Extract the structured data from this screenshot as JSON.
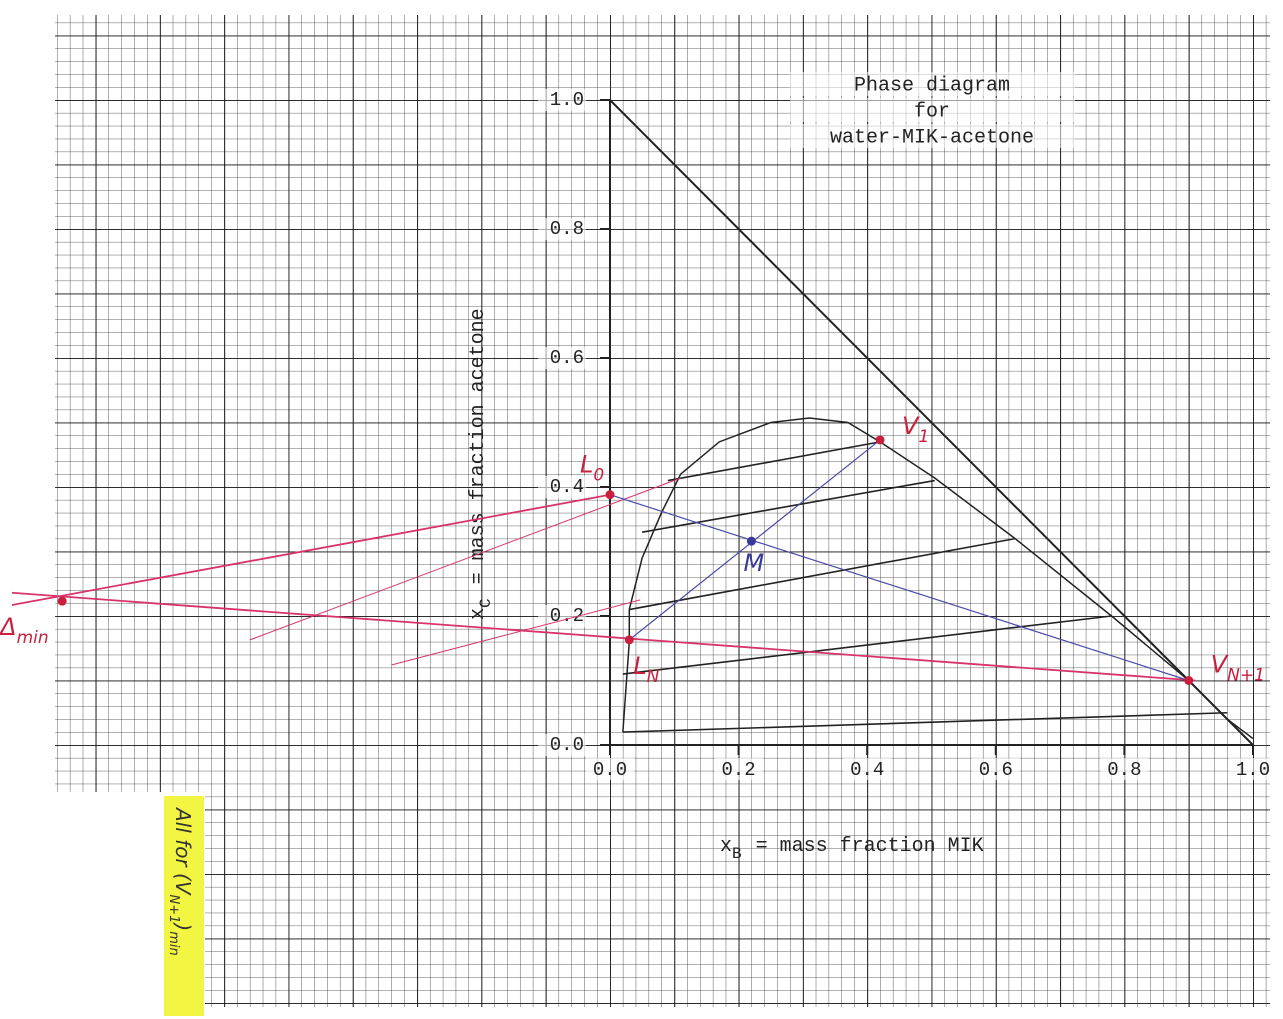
{
  "chart_data": {
    "type": "line",
    "title": [
      "Phase diagram",
      "for",
      "water-MIK-acetone"
    ],
    "xlabel": {
      "symbol": "x",
      "subscript": "B",
      "text": "= mass fraction MIK"
    },
    "ylabel": {
      "symbol": "x",
      "subscript": "C",
      "text": "= mass fraction acetone"
    },
    "xlim": [
      0,
      1
    ],
    "ylim": [
      0,
      1
    ],
    "xticks": [
      {
        "value": 0,
        "label": "0.0"
      },
      {
        "value": 0.2,
        "label": "0.2"
      },
      {
        "value": 0.4,
        "label": "0.4"
      },
      {
        "value": 0.6,
        "label": "0.6"
      },
      {
        "value": 0.8,
        "label": "0.8"
      },
      {
        "value": 1,
        "label": "1.0"
      }
    ],
    "yticks": [
      {
        "value": 0,
        "label": "0.0"
      },
      {
        "value": 0.2,
        "label": "0.2"
      },
      {
        "value": 0.4,
        "label": "0.4"
      },
      {
        "value": 0.6,
        "label": "0.6"
      },
      {
        "value": 0.8,
        "label": "0.8"
      },
      {
        "value": 1,
        "label": "1.0"
      }
    ],
    "boundary": {
      "color": "#222",
      "x": [
        0,
        0,
        1,
        0
      ],
      "y": [
        1,
        0,
        0,
        1
      ]
    },
    "binodal": {
      "color": "#222",
      "x": [
        0.02,
        0.03,
        0.03,
        0.05,
        0.08,
        0.11,
        0.17,
        0.25,
        0.31,
        0.37,
        0.42,
        0.505,
        0.63,
        0.78,
        0.9,
        0.96,
        1.0
      ],
      "y": [
        0.02,
        0.16,
        0.21,
        0.29,
        0.36,
        0.42,
        0.47,
        0.5,
        0.507,
        0.5,
        0.47,
        0.414,
        0.32,
        0.2,
        0.1,
        0.04,
        0.01
      ]
    },
    "tie_lines": {
      "color": "#222",
      "lines": [
        {
          "x": [
            0.09,
            0.42
          ],
          "y": [
            0.41,
            0.47
          ]
        },
        {
          "x": [
            0.05,
            0.505
          ],
          "y": [
            0.33,
            0.41
          ]
        },
        {
          "x": [
            0.03,
            0.63
          ],
          "y": [
            0.21,
            0.32
          ]
        },
        {
          "x": [
            0.02,
            0.78
          ],
          "y": [
            0.11,
            0.2
          ]
        },
        {
          "x": [
            0.02,
            0.96
          ],
          "y": [
            0.02,
            0.05
          ]
        }
      ]
    },
    "operating_lines": {
      "color": "#d8336a",
      "lines": [
        {
          "x": [
            -0.93,
            0.0
          ],
          "y": [
            0.217,
            0.388
          ]
        },
        {
          "x": [
            -0.93,
            0.91
          ],
          "y": [
            0.236,
            0.1
          ]
        },
        {
          "x": [
            -0.56,
            0.11
          ],
          "y": [
            0.163,
            0.414
          ]
        },
        {
          "x": [
            -0.34,
            0.047
          ],
          "y": [
            0.124,
            0.225
          ]
        }
      ]
    },
    "mixing_lines": {
      "color": "#4a4aa8",
      "lines": [
        {
          "x": [
            0.0,
            0.9
          ],
          "y": [
            0.388,
            0.1
          ]
        },
        {
          "x": [
            0.03,
            0.42
          ],
          "y": [
            0.163,
            0.473
          ]
        }
      ]
    },
    "points": [
      {
        "symbol": "L",
        "subscript": "0",
        "x": 0.0,
        "y": 0.388,
        "color": "#c8203e"
      },
      {
        "symbol": "V",
        "subscript": "1",
        "x": 0.42,
        "y": 0.473,
        "color": "#c8203e"
      },
      {
        "symbol": "M",
        "subscript": null,
        "x": 0.22,
        "y": 0.316,
        "color": "#3a3a9a"
      },
      {
        "symbol": "L",
        "subscript": "N",
        "x": 0.03,
        "y": 0.163,
        "color": "#c8203e"
      },
      {
        "symbol": "V",
        "subscript": "N+1",
        "x": 0.9,
        "y": 0.1,
        "color": "#c8203e"
      },
      {
        "symbol": "Δ",
        "subscript": "min",
        "x": -0.852,
        "y": 0.223,
        "color": "#c8203e"
      }
    ],
    "note": {
      "text": "All for (V",
      "subscript": "N+1",
      "tail": ")",
      "tail_subscript": "min"
    }
  }
}
